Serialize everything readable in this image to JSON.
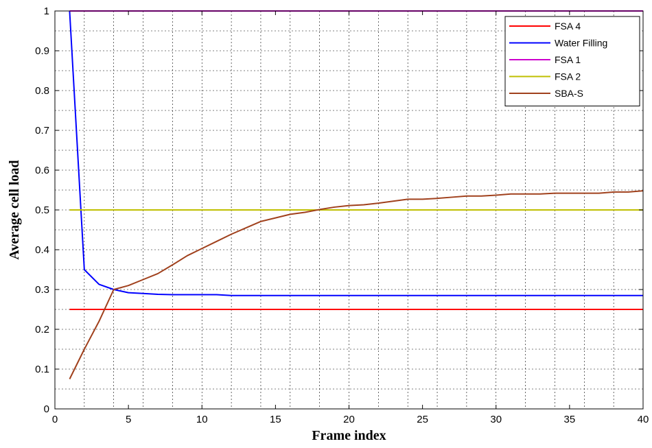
{
  "chart_data": {
    "type": "line",
    "title": "",
    "xlabel": "Frame index",
    "ylabel": "Average cell load",
    "xlim": [
      0,
      40
    ],
    "ylim": [
      0,
      1
    ],
    "xticks": [
      0,
      5,
      10,
      15,
      20,
      25,
      30,
      35,
      40
    ],
    "yticks": [
      0,
      0.1,
      0.2,
      0.3,
      0.4,
      0.5,
      0.6,
      0.7,
      0.8,
      0.9,
      1
    ],
    "grid": true,
    "legend_position": "top-right",
    "series": [
      {
        "name": "FSA 4",
        "color": "#ff0000",
        "x": [
          1,
          40
        ],
        "y": [
          0.25,
          0.25
        ]
      },
      {
        "name": "Water Filling",
        "color": "#0000ff",
        "x": [
          1,
          2,
          3,
          4,
          5,
          6,
          7,
          8,
          9,
          10,
          11,
          12,
          15,
          20,
          25,
          30,
          35,
          40
        ],
        "y": [
          1.0,
          0.35,
          0.313,
          0.3,
          0.292,
          0.29,
          0.288,
          0.287,
          0.287,
          0.287,
          0.287,
          0.285,
          0.285,
          0.285,
          0.285,
          0.285,
          0.285,
          0.285
        ]
      },
      {
        "name": "FSA 1",
        "color": "#cc00cc",
        "x": [
          1,
          40
        ],
        "y": [
          1.0,
          1.0
        ]
      },
      {
        "name": "FSA 2",
        "color": "#bfbf00",
        "x": [
          1,
          40
        ],
        "y": [
          0.5,
          0.5
        ]
      },
      {
        "name": "SBA-S",
        "color": "#a0401c",
        "x": [
          1,
          2,
          3,
          4,
          5,
          6,
          7,
          8,
          9,
          10,
          11,
          12,
          13,
          14,
          15,
          16,
          17,
          18,
          19,
          20,
          21,
          22,
          23,
          24,
          25,
          26,
          27,
          28,
          29,
          30,
          31,
          32,
          33,
          34,
          35,
          36,
          37,
          38,
          39,
          40
        ],
        "y": [
          0.075,
          0.15,
          0.22,
          0.3,
          0.31,
          0.325,
          0.34,
          0.362,
          0.385,
          0.403,
          0.421,
          0.439,
          0.455,
          0.471,
          0.48,
          0.489,
          0.494,
          0.501,
          0.507,
          0.511,
          0.513,
          0.517,
          0.522,
          0.527,
          0.527,
          0.529,
          0.532,
          0.535,
          0.535,
          0.537,
          0.54,
          0.54,
          0.54,
          0.542,
          0.542,
          0.542,
          0.542,
          0.545,
          0.545,
          0.548
        ]
      }
    ]
  }
}
